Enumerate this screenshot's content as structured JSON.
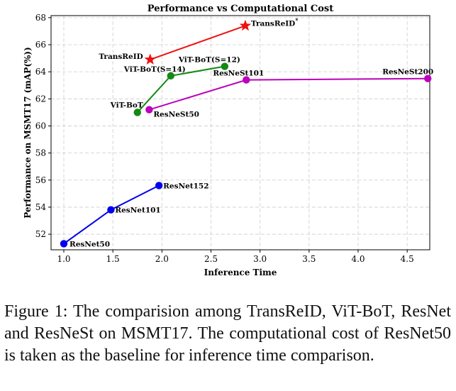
{
  "chart_data": {
    "type": "line",
    "title": "Performance vs Computational Cost",
    "xlabel": "Inference Time",
    "ylabel": "Performance on MSMT17 (mAP(%))",
    "xlim": [
      0.87,
      4.73
    ],
    "ylim": [
      50.85,
      68.15
    ],
    "xticks": [
      1.0,
      1.5,
      2.0,
      2.5,
      3.0,
      3.5,
      4.0,
      4.5
    ],
    "xtick_labels": [
      "1.0",
      "1.5",
      "2.0",
      "2.5",
      "3.0",
      "3.5",
      "4.0",
      "4.5"
    ],
    "yticks": [
      52,
      54,
      56,
      58,
      60,
      62,
      64,
      66,
      68
    ],
    "ytick_labels": [
      "52",
      "54",
      "56",
      "58",
      "60",
      "62",
      "64",
      "66",
      "68"
    ],
    "grid": true,
    "series": [
      {
        "name": "ResNet",
        "color": "#0000ee",
        "marker": "circle",
        "points": [
          {
            "x": 1.0,
            "y": 51.3,
            "label": "ResNet50",
            "anchor": "start",
            "dx": 8,
            "dy": 4
          },
          {
            "x": 1.48,
            "y": 53.8,
            "label": "ResNet101",
            "anchor": "start",
            "dx": 6,
            "dy": 4
          },
          {
            "x": 1.97,
            "y": 55.6,
            "label": "ResNet152",
            "anchor": "start",
            "dx": 6,
            "dy": 4
          }
        ]
      },
      {
        "name": "ViT-BoT",
        "color": "#138a13",
        "marker": "circle",
        "points": [
          {
            "x": 1.75,
            "y": 61.0,
            "label": "ViT-BoT",
            "anchor": "end",
            "dx": 8,
            "dy": -7
          },
          {
            "x": 2.09,
            "y": 63.7,
            "label": "ViT-BoT(S=14)",
            "anchor": "end",
            "dx": 21,
            "dy": -6
          },
          {
            "x": 2.64,
            "y": 64.4,
            "label": "ViT-BoT(S=12)",
            "anchor": "end",
            "dx": 22,
            "dy": -6
          }
        ]
      },
      {
        "name": "ResNeSt",
        "color": "#bb00bb",
        "marker": "circle",
        "points": [
          {
            "x": 1.87,
            "y": 61.2,
            "label": "ResNeSt50",
            "anchor": "start",
            "dx": 6,
            "dy": 10
          },
          {
            "x": 2.86,
            "y": 63.4,
            "label": "ResNeSt101",
            "anchor": "end",
            "dx": 25,
            "dy": -6
          },
          {
            "x": 4.71,
            "y": 63.5,
            "label": "ResNeSt200",
            "anchor": "end",
            "dx": 8,
            "dy": -6
          }
        ]
      },
      {
        "name": "TransReID",
        "color": "#ee1111",
        "marker": "star",
        "points": [
          {
            "x": 1.88,
            "y": 64.9,
            "label": "TransReID",
            "anchor": "end",
            "dx": -10,
            "dy": -1
          },
          {
            "x": 2.85,
            "y": 67.4,
            "label": "TransReID",
            "superscript": "*",
            "anchor": "start",
            "dx": 8,
            "dy": 0
          }
        ]
      }
    ]
  },
  "caption": {
    "text": "Figure 1: The comparision among TransReID, ViT-BoT, ResNet and ResNeSt on MSMT17. The computational cost of ResNet50 is taken as the baseline for inference time comparison."
  }
}
